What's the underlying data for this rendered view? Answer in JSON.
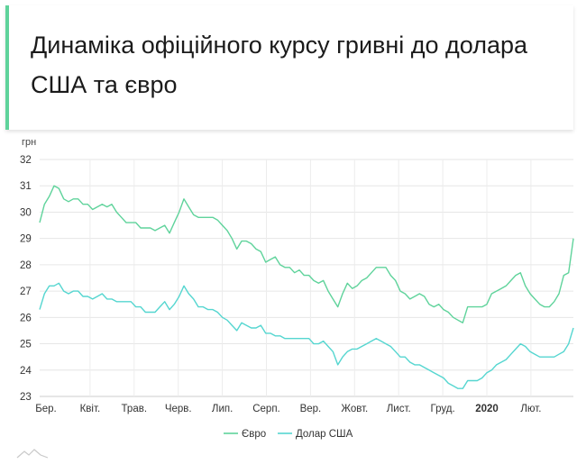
{
  "header": {
    "title": "Динаміка офіційного курсу гривні до долара США та євро"
  },
  "chart_data": {
    "type": "line",
    "ylabel": "грн",
    "ylim": [
      23,
      32
    ],
    "y_ticks": [
      32,
      31,
      30,
      29,
      28,
      27,
      26,
      25,
      24,
      23
    ],
    "x_ticks": [
      {
        "label": "Бер.",
        "bold": false
      },
      {
        "label": "Квіт.",
        "bold": false
      },
      {
        "label": "Трав.",
        "bold": false
      },
      {
        "label": "Черв.",
        "bold": false
      },
      {
        "label": "Лип.",
        "bold": false
      },
      {
        "label": "Серп.",
        "bold": false
      },
      {
        "label": "Вер.",
        "bold": false
      },
      {
        "label": "Жовт.",
        "bold": false
      },
      {
        "label": "Лист.",
        "bold": false
      },
      {
        "label": "Груд.",
        "bold": false
      },
      {
        "label": "2020",
        "bold": true
      },
      {
        "label": "Лют.",
        "bold": false
      }
    ],
    "grid": true,
    "legend_position": "bottom",
    "series": [
      {
        "name": "Євро",
        "color": "#5fd39b",
        "values": [
          29.6,
          30.3,
          30.6,
          31.0,
          30.9,
          30.5,
          30.4,
          30.5,
          30.5,
          30.3,
          30.3,
          30.1,
          30.2,
          30.3,
          30.2,
          30.3,
          30.0,
          29.8,
          29.6,
          29.6,
          29.6,
          29.4,
          29.4,
          29.4,
          29.3,
          29.4,
          29.5,
          29.2,
          29.6,
          30.0,
          30.5,
          30.2,
          29.9,
          29.8,
          29.8,
          29.8,
          29.8,
          29.7,
          29.5,
          29.3,
          29.0,
          28.6,
          28.9,
          28.9,
          28.8,
          28.6,
          28.5,
          28.1,
          28.2,
          28.3,
          28.0,
          27.9,
          27.9,
          27.7,
          27.8,
          27.6,
          27.6,
          27.4,
          27.3,
          27.4,
          27.0,
          26.7,
          26.4,
          26.9,
          27.3,
          27.1,
          27.2,
          27.4,
          27.5,
          27.7,
          27.9,
          27.9,
          27.9,
          27.6,
          27.4,
          27.0,
          26.9,
          26.7,
          26.8,
          26.9,
          26.8,
          26.5,
          26.4,
          26.5,
          26.3,
          26.2,
          26.0,
          25.9,
          25.8,
          26.4,
          26.4,
          26.4,
          26.4,
          26.5,
          26.9,
          27.0,
          27.1,
          27.2,
          27.4,
          27.6,
          27.7,
          27.2,
          26.9,
          26.7,
          26.5,
          26.4,
          26.4,
          26.6,
          26.9,
          27.6,
          27.7,
          29.0
        ]
      },
      {
        "name": "Долар США",
        "color": "#55d6d0",
        "values": [
          26.3,
          26.9,
          27.2,
          27.2,
          27.3,
          27.0,
          26.9,
          27.0,
          27.0,
          26.8,
          26.8,
          26.7,
          26.8,
          26.9,
          26.7,
          26.7,
          26.6,
          26.6,
          26.6,
          26.6,
          26.4,
          26.4,
          26.2,
          26.2,
          26.2,
          26.4,
          26.6,
          26.3,
          26.5,
          26.8,
          27.2,
          26.9,
          26.7,
          26.4,
          26.4,
          26.3,
          26.3,
          26.2,
          26.0,
          25.9,
          25.7,
          25.5,
          25.8,
          25.7,
          25.6,
          25.6,
          25.7,
          25.4,
          25.4,
          25.3,
          25.3,
          25.2,
          25.2,
          25.2,
          25.2,
          25.2,
          25.2,
          25.0,
          25.0,
          25.1,
          24.9,
          24.7,
          24.2,
          24.5,
          24.7,
          24.8,
          24.8,
          24.9,
          25.0,
          25.1,
          25.2,
          25.1,
          25.0,
          24.9,
          24.7,
          24.5,
          24.5,
          24.3,
          24.2,
          24.2,
          24.1,
          24.0,
          23.9,
          23.8,
          23.7,
          23.5,
          23.4,
          23.3,
          23.3,
          23.6,
          23.6,
          23.6,
          23.7,
          23.9,
          24.0,
          24.2,
          24.3,
          24.4,
          24.6,
          24.8,
          25.0,
          24.9,
          24.7,
          24.6,
          24.5,
          24.5,
          24.5,
          24.5,
          24.6,
          24.7,
          25.0,
          25.6
        ]
      }
    ]
  }
}
